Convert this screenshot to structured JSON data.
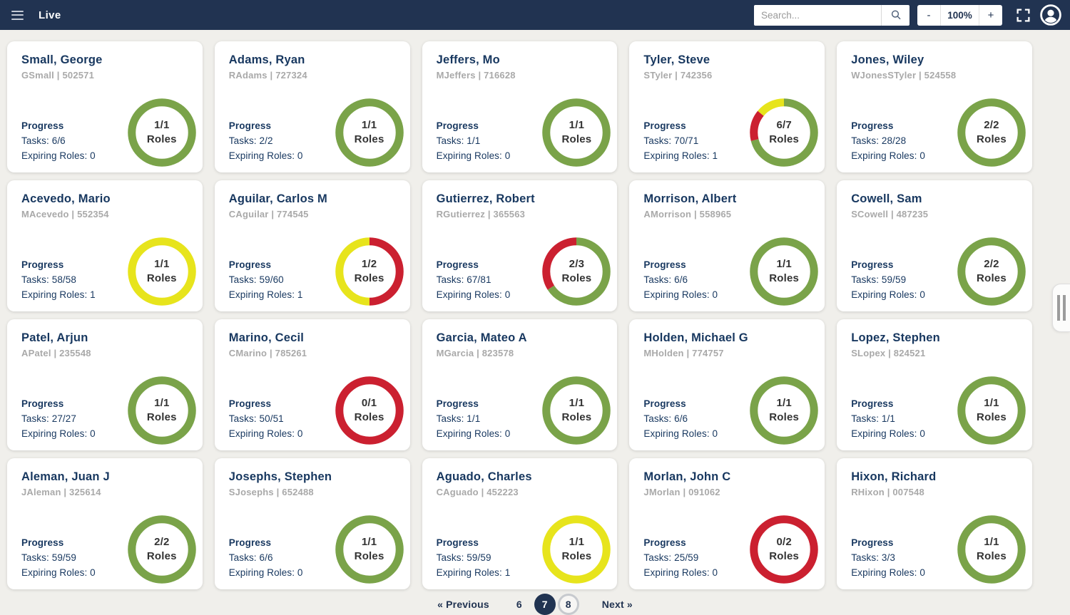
{
  "topbar": {
    "title": "Live",
    "search_placeholder": "Search...",
    "zoom_out_label": "-",
    "zoom_level": "100%",
    "zoom_in_label": "+"
  },
  "palette": {
    "topbar_bg": "#213351",
    "ring_green": "#7aa349",
    "ring_yellow": "#e7e41c",
    "ring_red": "#cb2030",
    "text_navy": "#17375f",
    "text_gray": "#a9a9a9"
  },
  "cards": [
    {
      "name": "Small, George",
      "meta": "GSmall | 502571",
      "progress_label": "Progress",
      "tasks": "Tasks: 6/6",
      "expiring": "Expiring Roles: 0",
      "ring_value": "1/1",
      "ring_label": "Roles",
      "segments": [
        {
          "color": "#7aa349",
          "frac": 1
        }
      ]
    },
    {
      "name": "Adams, Ryan",
      "meta": "RAdams | 727324",
      "progress_label": "Progress",
      "tasks": "Tasks: 2/2",
      "expiring": "Expiring Roles: 0",
      "ring_value": "1/1",
      "ring_label": "Roles",
      "segments": [
        {
          "color": "#7aa349",
          "frac": 1
        }
      ]
    },
    {
      "name": "Jeffers, Mo",
      "meta": "MJeffers | 716628",
      "progress_label": "Progress",
      "tasks": "Tasks: 1/1",
      "expiring": "Expiring Roles: 0",
      "ring_value": "1/1",
      "ring_label": "Roles",
      "segments": [
        {
          "color": "#7aa349",
          "frac": 1
        }
      ]
    },
    {
      "name": "Tyler, Steve",
      "meta": "STyler | 742356",
      "progress_label": "Progress",
      "tasks": "Tasks: 70/71",
      "expiring": "Expiring Roles: 1",
      "ring_value": "6/7",
      "ring_label": "Roles",
      "segments": [
        {
          "color": "#7aa349",
          "frac": 0.71
        },
        {
          "color": "#cb2030",
          "frac": 0.15
        },
        {
          "color": "#e7e41c",
          "frac": 0.14
        }
      ]
    },
    {
      "name": "Jones, Wiley",
      "meta": "WJonesSTyler | 524558",
      "progress_label": "Progress",
      "tasks": "Tasks: 28/28",
      "expiring": "Expiring Roles: 0",
      "ring_value": "2/2",
      "ring_label": "Roles",
      "segments": [
        {
          "color": "#7aa349",
          "frac": 1
        }
      ]
    },
    {
      "name": "Acevedo, Mario",
      "meta": "MAcevedo | 552354",
      "progress_label": "Progress",
      "tasks": "Tasks: 58/58",
      "expiring": "Expiring Roles: 1",
      "ring_value": "1/1",
      "ring_label": "Roles",
      "segments": [
        {
          "color": "#e7e41c",
          "frac": 1
        }
      ]
    },
    {
      "name": "Aguilar, Carlos M",
      "meta": "CAguilar | 774545",
      "progress_label": "Progress",
      "tasks": "Tasks: 59/60",
      "expiring": "Expiring Roles: 1",
      "ring_value": "1/2",
      "ring_label": "Roles",
      "segments": [
        {
          "color": "#cb2030",
          "frac": 0.5
        },
        {
          "color": "#e7e41c",
          "frac": 0.5
        }
      ]
    },
    {
      "name": "Gutierrez, Robert",
      "meta": "RGutierrez | 365563",
      "progress_label": "Progress",
      "tasks": "Tasks: 67/81",
      "expiring": "Expiring Roles: 0",
      "ring_value": "2/3",
      "ring_label": "Roles",
      "segments": [
        {
          "color": "#7aa349",
          "frac": 0.66
        },
        {
          "color": "#cb2030",
          "frac": 0.34
        }
      ]
    },
    {
      "name": "Morrison, Albert",
      "meta": "AMorrison | 558965",
      "progress_label": "Progress",
      "tasks": "Tasks: 6/6",
      "expiring": "Expiring Roles: 0",
      "ring_value": "1/1",
      "ring_label": "Roles",
      "segments": [
        {
          "color": "#7aa349",
          "frac": 1
        }
      ]
    },
    {
      "name": "Cowell, Sam",
      "meta": "SCowell | 487235",
      "progress_label": "Progress",
      "tasks": "Tasks: 59/59",
      "expiring": "Expiring Roles: 0",
      "ring_value": "2/2",
      "ring_label": "Roles",
      "segments": [
        {
          "color": "#7aa349",
          "frac": 1
        }
      ]
    },
    {
      "name": "Patel, Arjun",
      "meta": "APatel | 235548",
      "progress_label": "Progress",
      "tasks": "Tasks: 27/27",
      "expiring": "Expiring Roles: 0",
      "ring_value": "1/1",
      "ring_label": "Roles",
      "segments": [
        {
          "color": "#7aa349",
          "frac": 1
        }
      ]
    },
    {
      "name": "Marino, Cecil",
      "meta": "CMarino | 785261",
      "progress_label": "Progress",
      "tasks": "Tasks: 50/51",
      "expiring": "Expiring Roles: 0",
      "ring_value": "0/1",
      "ring_label": "Roles",
      "segments": [
        {
          "color": "#cb2030",
          "frac": 1
        }
      ]
    },
    {
      "name": "Garcia, Mateo A",
      "meta": "MGarcia | 823578",
      "progress_label": "Progress",
      "tasks": "Tasks: 1/1",
      "expiring": "Expiring Roles: 0",
      "ring_value": "1/1",
      "ring_label": "Roles",
      "segments": [
        {
          "color": "#7aa349",
          "frac": 1
        }
      ]
    },
    {
      "name": "Holden, Michael G",
      "meta": "MHolden | 774757",
      "progress_label": "Progress",
      "tasks": "Tasks: 6/6",
      "expiring": "Expiring Roles: 0",
      "ring_value": "1/1",
      "ring_label": "Roles",
      "segments": [
        {
          "color": "#7aa349",
          "frac": 1
        }
      ]
    },
    {
      "name": "Lopez, Stephen",
      "meta": "SLopex | 824521",
      "progress_label": "Progress",
      "tasks": "Tasks: 1/1",
      "expiring": "Expiring Roles: 0",
      "ring_value": "1/1",
      "ring_label": "Roles",
      "segments": [
        {
          "color": "#7aa349",
          "frac": 1
        }
      ]
    },
    {
      "name": "Aleman, Juan J",
      "meta": "JAleman | 325614",
      "progress_label": "Progress",
      "tasks": "Tasks: 59/59",
      "expiring": "Expiring Roles: 0",
      "ring_value": "2/2",
      "ring_label": "Roles",
      "segments": [
        {
          "color": "#7aa349",
          "frac": 1
        }
      ]
    },
    {
      "name": "Josephs, Stephen",
      "meta": "SJosephs | 652488",
      "progress_label": "Progress",
      "tasks": "Tasks: 6/6",
      "expiring": "Expiring Roles: 0",
      "ring_value": "1/1",
      "ring_label": "Roles",
      "segments": [
        {
          "color": "#7aa349",
          "frac": 1
        }
      ]
    },
    {
      "name": "Aguado, Charles",
      "meta": "CAguado | 452223",
      "progress_label": "Progress",
      "tasks": "Tasks: 59/59",
      "expiring": "Expiring Roles: 1",
      "ring_value": "1/1",
      "ring_label": "Roles",
      "segments": [
        {
          "color": "#e7e41c",
          "frac": 1
        }
      ]
    },
    {
      "name": "Morlan, John C",
      "meta": "JMorlan | 091062",
      "progress_label": "Progress",
      "tasks": "Tasks: 25/59",
      "expiring": "Expiring Roles: 0",
      "ring_value": "0/2",
      "ring_label": "Roles",
      "segments": [
        {
          "color": "#cb2030",
          "frac": 1
        }
      ]
    },
    {
      "name": "Hixon, Richard",
      "meta": "RHixon | 007548",
      "progress_label": "Progress",
      "tasks": "Tasks: 3/3",
      "expiring": "Expiring Roles: 0",
      "ring_value": "1/1",
      "ring_label": "Roles",
      "segments": [
        {
          "color": "#7aa349",
          "frac": 1
        }
      ]
    }
  ],
  "pagination": {
    "previous_label": "« Previous",
    "pages": [
      {
        "label": "6",
        "variant": "plain"
      },
      {
        "label": "7",
        "variant": "current"
      },
      {
        "label": "8",
        "variant": "outlined"
      }
    ],
    "active_page": "7",
    "next_label": "Next »"
  }
}
